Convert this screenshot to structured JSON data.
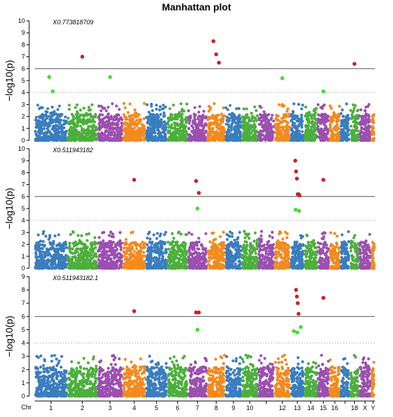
{
  "title": "Manhattan plot",
  "colors": {
    "blue": "#3a7dbf",
    "green": "#4caf3c",
    "purple": "#9b4fb0",
    "orange": "#f28a1e",
    "significant": "#cc2222",
    "suggestive": "#44dd33",
    "threshold_line": "#555555",
    "suggestive_line": "#bbbbbb"
  },
  "chart_data": {
    "type": "scatter",
    "x_axis_title": "Chr",
    "chromosomes": [
      "1",
      "2",
      "3",
      "4",
      "5",
      "6",
      "7",
      "8",
      "9",
      "10",
      "11",
      "12",
      "13",
      "14",
      "15",
      "16",
      "17",
      "18",
      "X",
      "Y"
    ],
    "chromosome_labels": [
      "1",
      "2",
      "3",
      "4",
      "5",
      "6",
      "7",
      "8",
      "9",
      "10",
      "",
      "12",
      "13",
      "14",
      "15",
      "16",
      "",
      "18",
      "X",
      "Y"
    ],
    "color_cycle": [
      "blue",
      "green",
      "purple",
      "orange"
    ],
    "ylabel": "−log10(p)",
    "yticks": [
      0,
      1,
      2,
      3,
      4,
      5,
      6,
      7,
      8,
      9,
      10
    ],
    "panels": [
      {
        "name": "X0.773818709",
        "ylim": [
          0,
          10
        ],
        "genome_wide_threshold": 6,
        "suggestive_threshold": 4,
        "significant_points": [
          {
            "chr": "2",
            "y": 7.0
          },
          {
            "chr": "8",
            "y": 8.3
          },
          {
            "chr": "8",
            "y": 7.2
          },
          {
            "chr": "8",
            "y": 6.5
          },
          {
            "chr": "18",
            "y": 6.4
          }
        ],
        "suggestive_points": [
          {
            "chr": "1",
            "y": 5.3
          },
          {
            "chr": "1",
            "y": 4.1
          },
          {
            "chr": "3",
            "y": 5.3
          },
          {
            "chr": "12",
            "y": 5.2
          },
          {
            "chr": "15",
            "y": 4.1
          }
        ]
      },
      {
        "name": "X0.511943182",
        "ylim": [
          0,
          10
        ],
        "genome_wide_threshold": 6,
        "suggestive_threshold": 4,
        "significant_points": [
          {
            "chr": "4",
            "y": 7.4
          },
          {
            "chr": "7",
            "y": 7.3
          },
          {
            "chr": "7",
            "y": 6.3
          },
          {
            "chr": "13",
            "y": 9.0
          },
          {
            "chr": "13",
            "y": 8.1
          },
          {
            "chr": "13",
            "y": 7.5
          },
          {
            "chr": "13",
            "y": 6.2
          },
          {
            "chr": "13",
            "y": 6.2
          },
          {
            "chr": "13",
            "y": 6.1
          },
          {
            "chr": "15",
            "y": 7.4
          }
        ],
        "suggestive_points": [
          {
            "chr": "7",
            "y": 5.0
          },
          {
            "chr": "13",
            "y": 4.9
          },
          {
            "chr": "13",
            "y": 4.8
          }
        ]
      },
      {
        "name": "X0.511943182.1",
        "ylim": [
          0,
          9
        ],
        "genome_wide_threshold": 6,
        "suggestive_threshold": 4,
        "significant_points": [
          {
            "chr": "4",
            "y": 6.4
          },
          {
            "chr": "7",
            "y": 6.3
          },
          {
            "chr": "7",
            "y": 6.3
          },
          {
            "chr": "13",
            "y": 8.0
          },
          {
            "chr": "13",
            "y": 7.5
          },
          {
            "chr": "13",
            "y": 7.0
          },
          {
            "chr": "13",
            "y": 6.2
          },
          {
            "chr": "15",
            "y": 7.4
          }
        ],
        "suggestive_points": [
          {
            "chr": "7",
            "y": 5.0
          },
          {
            "chr": "13",
            "y": 4.9
          },
          {
            "chr": "13",
            "y": 4.8
          },
          {
            "chr": "13",
            "y": 5.2
          }
        ]
      }
    ]
  }
}
